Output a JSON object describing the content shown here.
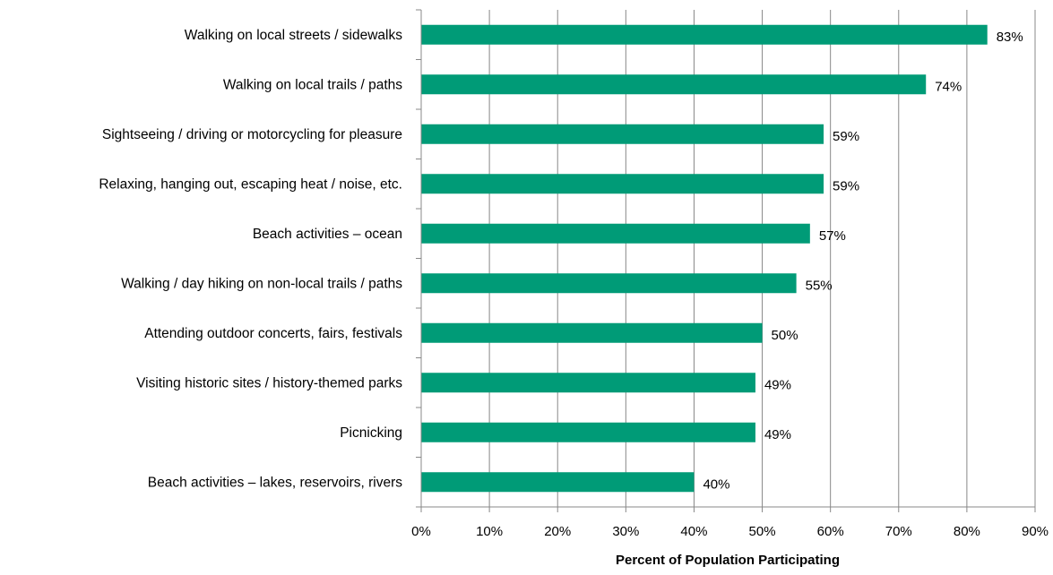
{
  "chart_data": {
    "type": "bar",
    "orientation": "horizontal",
    "title": "",
    "xlabel": "Percent of Population Participating",
    "ylabel": "",
    "xlim": [
      0,
      90
    ],
    "grid": true,
    "legend": "none",
    "bar_color": "#009B77",
    "categories": [
      "Walking on local streets / sidewalks",
      "Walking on local trails / paths",
      "Sightseeing / driving or motorcycling for pleasure",
      "Relaxing, hanging out, escaping heat / noise, etc.",
      "Beach activities – ocean",
      "Walking / day hiking on non-local trails / paths",
      "Attending outdoor concerts, fairs, festivals",
      "Visiting historic sites / history-themed parks",
      "Picnicking",
      "Beach activities – lakes, reservoirs, rivers"
    ],
    "values": [
      83,
      74,
      59,
      59,
      57,
      55,
      50,
      49,
      49,
      40
    ],
    "value_labels": [
      "83%",
      "74%",
      "59%",
      "59%",
      "57%",
      "55%",
      "50%",
      "49%",
      "49%",
      "40%"
    ],
    "x_ticks": [
      0,
      10,
      20,
      30,
      40,
      50,
      60,
      70,
      80,
      90
    ],
    "x_tick_labels": [
      "0%",
      "10%",
      "20%",
      "30%",
      "40%",
      "50%",
      "60%",
      "70%",
      "80%",
      "90%"
    ]
  }
}
